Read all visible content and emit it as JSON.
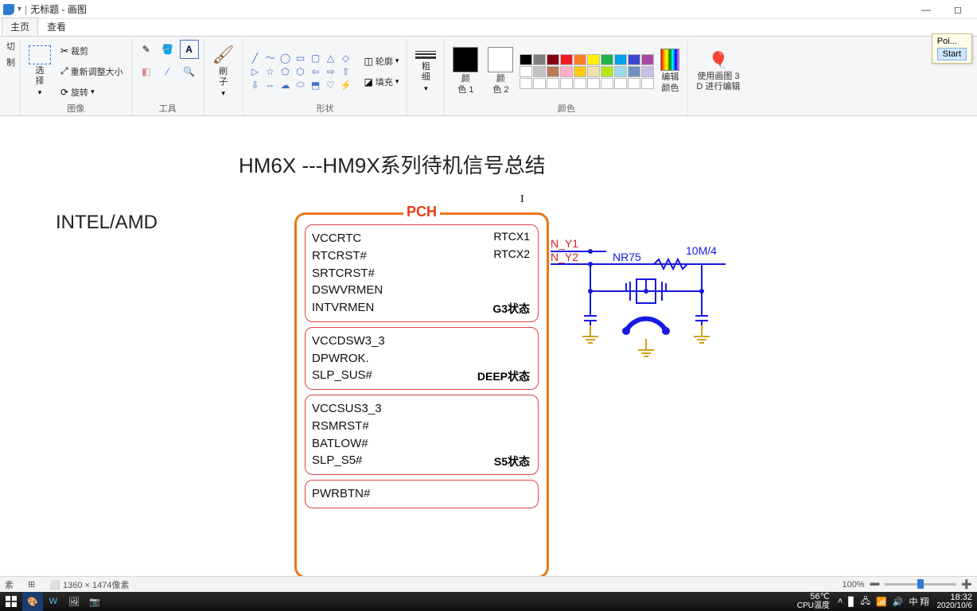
{
  "titlebar": {
    "doc_title": "无标题 - 画图"
  },
  "tabs": {
    "home": "主页",
    "view": "查看"
  },
  "ribbon": {
    "clipboard": {
      "cut": "切",
      "copy": "制"
    },
    "image": {
      "select": "选\n择",
      "crop": "裁剪",
      "resize": "重新调整大小",
      "rotate": "旋转",
      "label": "图像"
    },
    "tools": {
      "brush": "刷\n子",
      "label": "工具"
    },
    "shapes": {
      "outline": "轮廓",
      "fill": "填充",
      "label": "形状"
    },
    "stroke": {
      "thick": "粗\n细"
    },
    "colors": {
      "c1": "颜\n色 1",
      "c2": "颜\n色 2",
      "edit": "编辑\n颜色",
      "label": "颜色"
    },
    "paint3d": {
      "text": "使用画图 3\nD 进行编辑"
    }
  },
  "palette_colors": [
    "#000000",
    "#7f7f7f",
    "#880015",
    "#ed1c24",
    "#ff7f27",
    "#fff200",
    "#22b14c",
    "#00a2e8",
    "#3f48cc",
    "#a349a4",
    "#ffffff",
    "#c3c3c3",
    "#b97a57",
    "#ffaec9",
    "#ffc90e",
    "#efe4b0",
    "#b5e61d",
    "#99d9ea",
    "#7092be",
    "#c8bfe7",
    "#ffffff",
    "#ffffff",
    "#ffffff",
    "#ffffff",
    "#ffffff",
    "#ffffff",
    "#ffffff",
    "#ffffff",
    "#ffffff",
    "#ffffff"
  ],
  "selected_colors": {
    "c1": "#000000",
    "c2": "#ffffff"
  },
  "document": {
    "title": "HM6X ---HM9X系列待机信号总结",
    "subtitle": "INTEL/AMD",
    "pch_label": "PCH",
    "states": [
      {
        "left": [
          "VCCRTC",
          "RTCRST#",
          "SRTCRST#",
          "DSWVRMEN",
          "INTVRMEN"
        ],
        "right": [
          "RTCX1",
          "RTCX2"
        ],
        "state": "G3状态"
      },
      {
        "left": [
          "VCCDSW3_3",
          "DPWROK.",
          "SLP_SUS#"
        ],
        "right": [],
        "state": "DEEP状态"
      },
      {
        "left": [
          "VCCSUS3_3",
          "RSMRST#",
          "BATLOW#",
          "SLP_S5#"
        ],
        "right": [],
        "state": "S5状态"
      },
      {
        "left": [
          "PWRBTN#"
        ],
        "right": [],
        "state": ""
      }
    ],
    "circuit": {
      "ny1": "N_Y1",
      "ny2": "N_Y2",
      "nr": "NR75",
      "res": "10M/4",
      "wire_color": "#1818e0",
      "gnd_color": "#d4a017",
      "net_color": "#d62222"
    }
  },
  "statusbar": {
    "px": "素",
    "pos_icon": "⊞",
    "size": "1360 × 1474像素",
    "zoom": "100%"
  },
  "tooltip": {
    "line1": "Poi...",
    "line2": "Start"
  },
  "taskbar": {
    "temp1": "56℃",
    "temp2": "CPU温度",
    "time": "18:32",
    "date": "2020/10/6",
    "ime": "中  翔"
  }
}
